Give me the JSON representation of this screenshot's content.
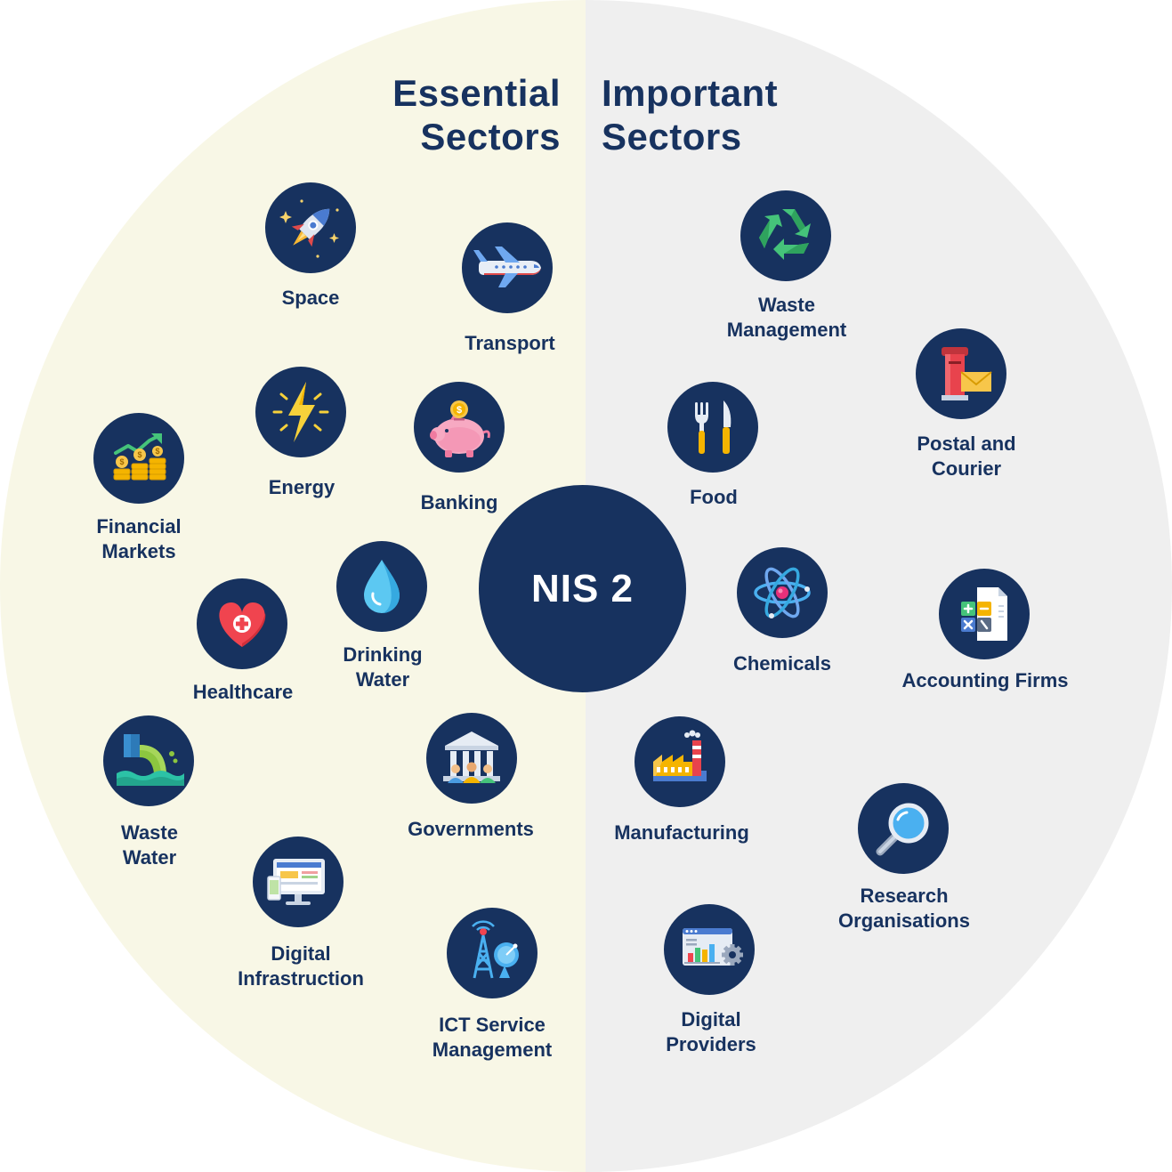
{
  "center": {
    "label": "NIS 2"
  },
  "essential": {
    "title_line1": "Essential",
    "title_line2": "Sectors",
    "background": "#f8f7e6",
    "sectors": [
      {
        "icon": "rocket-icon",
        "line1": "Space"
      },
      {
        "icon": "airplane-icon",
        "line1": "Transport"
      },
      {
        "icon": "lightning-icon",
        "line1": "Energy"
      },
      {
        "icon": "piggy-bank-icon",
        "line1": "Banking"
      },
      {
        "icon": "coins-chart-icon",
        "line1": "Financial",
        "line2": "Markets"
      },
      {
        "icon": "water-drop-icon",
        "line1": "Drinking",
        "line2": "Water"
      },
      {
        "icon": "heart-cross-icon",
        "line1": "Healthcare"
      },
      {
        "icon": "waste-pipe-icon",
        "line1": "Waste",
        "line2": "Water"
      },
      {
        "icon": "government-building-icon",
        "line1": "Governments"
      },
      {
        "icon": "computer-monitor-icon",
        "line1": "Digital",
        "line2": "Infrastruction"
      },
      {
        "icon": "antenna-tower-icon",
        "line1": "ICT Service",
        "line2": "Management"
      }
    ]
  },
  "important": {
    "title_line1": "Important",
    "title_line2": "Sectors",
    "background": "#efefef",
    "sectors": [
      {
        "icon": "recycle-icon",
        "line1": "Waste",
        "line2": "Management"
      },
      {
        "icon": "mailbox-icon",
        "line1": "Postal and",
        "line2": "Courier"
      },
      {
        "icon": "fork-knife-icon",
        "line1": "Food"
      },
      {
        "icon": "atom-icon",
        "line1": "Chemicals"
      },
      {
        "icon": "calculator-document-icon",
        "line1": "Accounting Firms"
      },
      {
        "icon": "factory-icon",
        "line1": "Manufacturing"
      },
      {
        "icon": "magnifier-icon",
        "line1": "Research",
        "line2": "Organisations"
      },
      {
        "icon": "dashboard-browser-icon",
        "line1": "Digital",
        "line2": "Providers"
      }
    ]
  },
  "colors": {
    "navy": "#17325f",
    "essential_bg": "#f8f7e6",
    "important_bg": "#efefef"
  }
}
